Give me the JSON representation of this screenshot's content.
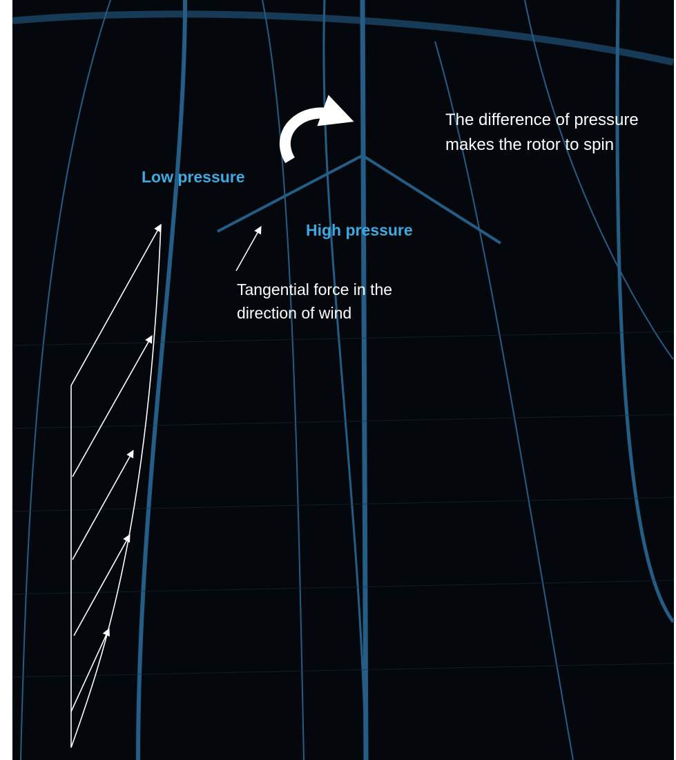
{
  "labels": {
    "low_pressure": "Low pressure",
    "high_pressure": "High pressure",
    "rotor_note": "The difference of pressure makes the rotor to spin",
    "tangential_note": "Tangential force in the direction of wind"
  }
}
